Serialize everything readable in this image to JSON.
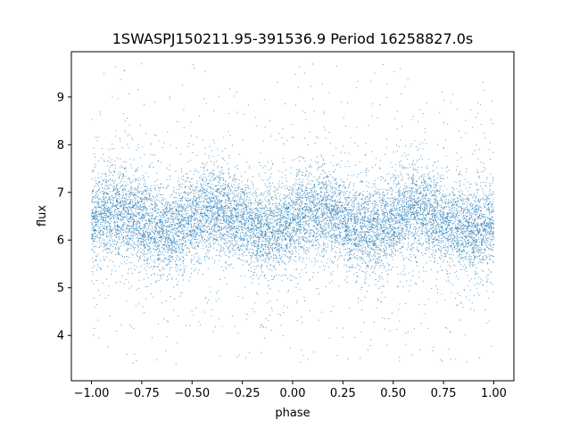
{
  "chart_data": {
    "type": "scatter",
    "title": "1SWASPJ150211.95-391536.9 Period 16258827.0s",
    "xlabel": "phase",
    "ylabel": "flux",
    "xlim": [
      -1.1,
      1.1
    ],
    "ylim": [
      3.05,
      9.95
    ],
    "xticks": [
      -1.0,
      -0.75,
      -0.5,
      -0.25,
      0.0,
      0.25,
      0.5,
      0.75,
      1.0
    ],
    "xtick_labels": [
      "−1.00",
      "−0.75",
      "−0.50",
      "−0.25",
      "0.00",
      "0.25",
      "0.50",
      "0.75",
      "1.00"
    ],
    "yticks": [
      4,
      5,
      6,
      7,
      8,
      9
    ],
    "ytick_labels": [
      "4",
      "5",
      "6",
      "7",
      "8",
      "9"
    ],
    "grid": false,
    "marker_color": "#1f77b4",
    "series": [
      {
        "phase_range": [
          -1.0,
          1.0
        ],
        "flux_median_approx": 6.4,
        "flux_core_range": [
          5.2,
          7.6
        ],
        "flux_full_range": [
          3.4,
          9.7
        ],
        "point_count_approx": 12000
      }
    ]
  }
}
